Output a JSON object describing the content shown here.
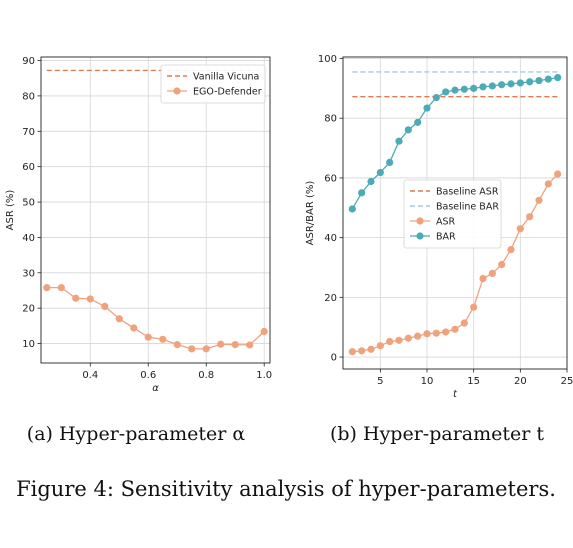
{
  "figure_caption": "Figure 4: Sensitivity analysis of hyper-parameters.",
  "colors": {
    "orange_dashed": "#e07a4f",
    "orange_marker": "#f0a27c",
    "blue_dashed": "#a9c8dc",
    "teal": "#4cabb8",
    "grid": "#d6d6d6"
  },
  "chart_data": [
    {
      "type": "line",
      "subcaption": "(a) Hyper-parameter α",
      "xlabel": "α",
      "ylabel": "ASR (%)",
      "xlim": [
        0.23,
        1.02
      ],
      "ylim": [
        4.5,
        91
      ],
      "xticks": [
        0.4,
        0.6,
        0.8,
        1.0
      ],
      "xtick_labels": [
        "0.4",
        "0.6",
        "0.8",
        "1.0"
      ],
      "yticks": [
        10,
        20,
        30,
        40,
        50,
        60,
        70,
        80,
        90
      ],
      "ytick_labels": [
        "10",
        "20",
        "30",
        "40",
        "50",
        "60",
        "70",
        "80",
        "90"
      ],
      "grid": true,
      "legend_position": "top-right",
      "series": [
        {
          "name": "Vanilla Vicuna",
          "style": "dashed",
          "x": [
            0.25,
            1.0
          ],
          "values": [
            87.2,
            87.2
          ]
        },
        {
          "name": "EGO-Defender",
          "style": "line-marker",
          "x": [
            0.25,
            0.3,
            0.35,
            0.4,
            0.45,
            0.5,
            0.55,
            0.6,
            0.65,
            0.7,
            0.75,
            0.8,
            0.85,
            0.9,
            0.95,
            1.0
          ],
          "values": [
            25.8,
            25.8,
            22.8,
            22.6,
            20.5,
            17.0,
            14.4,
            11.8,
            11.2,
            9.7,
            8.5,
            8.5,
            9.8,
            9.7,
            9.6,
            13.4
          ]
        }
      ]
    },
    {
      "type": "line",
      "subcaption": "(b) Hyper-parameter t",
      "xlabel": "t",
      "ylabel": "ASR/BAR (%)",
      "xlim": [
        1.0,
        25.0
      ],
      "ylim": [
        -4,
        100.5
      ],
      "xticks": [
        5,
        10,
        15,
        20,
        25
      ],
      "xtick_labels": [
        "5",
        "10",
        "15",
        "20",
        "25"
      ],
      "yticks": [
        0,
        20,
        40,
        60,
        80,
        100
      ],
      "ytick_labels": [
        "0",
        "20",
        "40",
        "60",
        "80",
        "100"
      ],
      "grid": true,
      "legend_position": "center",
      "series": [
        {
          "name": "Baseline ASR",
          "style": "dashed",
          "x": [
            2,
            24
          ],
          "values": [
            87.2,
            87.2
          ]
        },
        {
          "name": "Baseline BAR",
          "style": "dashed",
          "x": [
            2,
            24
          ],
          "values": [
            95.5,
            95.5
          ]
        },
        {
          "name": "ASR",
          "style": "line-marker",
          "x": [
            2,
            3,
            4,
            5,
            6,
            7,
            8,
            9,
            10,
            11,
            12,
            13,
            14,
            15,
            16,
            17,
            18,
            19,
            20,
            21,
            22,
            23,
            24
          ],
          "values": [
            1.8,
            2.1,
            2.6,
            3.8,
            5.2,
            5.6,
            6.3,
            7.0,
            7.8,
            8.0,
            8.4,
            9.3,
            11.4,
            16.7,
            26.3,
            28.0,
            31.0,
            36.0,
            43.0,
            47.0,
            52.5,
            58.0,
            61.3
          ]
        },
        {
          "name": "BAR",
          "style": "line-marker",
          "x": [
            2,
            3,
            4,
            5,
            6,
            7,
            8,
            9,
            10,
            11,
            12,
            13,
            14,
            15,
            16,
            17,
            18,
            19,
            20,
            21,
            22,
            23,
            24
          ],
          "values": [
            49.6,
            55.0,
            58.8,
            61.8,
            65.2,
            72.3,
            76.1,
            78.6,
            83.4,
            86.9,
            88.8,
            89.4,
            89.7,
            90.0,
            90.5,
            90.8,
            91.2,
            91.5,
            91.8,
            92.2,
            92.6,
            93.1,
            93.6
          ]
        }
      ]
    }
  ]
}
